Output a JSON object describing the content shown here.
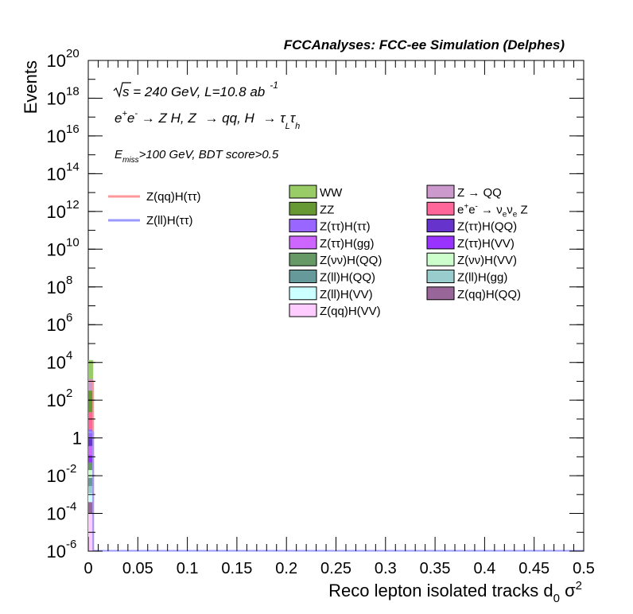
{
  "header": {
    "title": "FCCAnalyses: FCC-ee Simulation (Delphes)"
  },
  "annotations": {
    "energy_sqrt": "s",
    "energy_rest": " = 240 GeV, L=10.8 ab",
    "lumi_exp": "-1",
    "process": {
      "p1": "e",
      "p1_sup": "+",
      "p2": "e",
      "p2_sup": "-",
      "arrow1": " → Z H, Z ",
      "arrow2": "→ qq, H ",
      "arrow3": "→ τ",
      "tau1_sub": "L",
      "tau2": "τ",
      "tau2_sub": "h"
    },
    "selection": {
      "e": "E",
      "e_sub": "miss",
      "rest": ">100 GeV, BDT score>0.5"
    }
  },
  "legend_signal": [
    {
      "label": "Z(qq)H(ττ)",
      "color": "#ff9999"
    },
    {
      "label": "Z(ll)H(ττ)",
      "color": "#9999ff"
    }
  ],
  "legend_bkg": [
    {
      "label": "WW",
      "color": "#99cc66"
    },
    {
      "label": "Z → QQ",
      "color": "#cc99cc"
    },
    {
      "label": "ZZ",
      "color": "#669933"
    },
    {
      "label": "e+e- → νeνe Z",
      "color": "#ff6699",
      "rich": true
    },
    {
      "label": "Z(ττ)H(ττ)",
      "color": "#9966ff"
    },
    {
      "label": "Z(ττ)H(QQ)",
      "color": "#6633cc"
    },
    {
      "label": "Z(ττ)H(gg)",
      "color": "#cc66ff"
    },
    {
      "label": "Z(ττ)H(VV)",
      "color": "#9933ff"
    },
    {
      "label": "Z(νν)H(QQ)",
      "color": "#669966"
    },
    {
      "label": "Z(νν)H(VV)",
      "color": "#ccffcc"
    },
    {
      "label": "Z(ll)H(QQ)",
      "color": "#669999"
    },
    {
      "label": "Z(ll)H(gg)",
      "color": "#99cccc"
    },
    {
      "label": "Z(ll)H(VV)",
      "color": "#ccffff"
    },
    {
      "label": "Z(qq)H(QQ)",
      "color": "#996699"
    },
    {
      "label": "Z(qq)H(VV)",
      "color": "#ffccff"
    }
  ],
  "chart_data": {
    "type": "bar",
    "xlabel": "Reco lepton isolated tracks d",
    "xlabel_sub": "0",
    "xlabel_tail": " σ",
    "xlabel_sup": "2",
    "ylabel": "Events",
    "xlim": [
      0,
      0.5
    ],
    "ylim": [
      1e-06,
      1e+20
    ],
    "log_y": true,
    "x_ticks": [
      "0",
      "0.05",
      "0.1",
      "0.15",
      "0.2",
      "0.25",
      "0.3",
      "0.35",
      "0.4",
      "0.45",
      "0.5"
    ],
    "y_ticks": [
      {
        "base": "10",
        "exp": "-6",
        "value": 1e-06
      },
      {
        "base": "10",
        "exp": "-4",
        "value": 0.0001
      },
      {
        "base": "10",
        "exp": "-2",
        "value": 0.01
      },
      {
        "base": "1",
        "exp": "",
        "value": 1
      },
      {
        "base": "10",
        "exp": "2",
        "value": 100.0
      },
      {
        "base": "10",
        "exp": "4",
        "value": 10000.0
      },
      {
        "base": "10",
        "exp": "6",
        "value": 1000000.0
      },
      {
        "base": "10",
        "exp": "8",
        "value": 100000000.0
      },
      {
        "base": "10",
        "exp": "10",
        "value": 10000000000.0
      },
      {
        "base": "10",
        "exp": "12",
        "value": 1000000000000.0
      },
      {
        "base": "10",
        "exp": "14",
        "value": 100000000000000.0
      },
      {
        "base": "10",
        "exp": "16",
        "value": 1e+16
      },
      {
        "base": "10",
        "exp": "18",
        "value": 1e+18
      },
      {
        "base": "10",
        "exp": "20",
        "value": 1e+20
      }
    ],
    "bin_width": 0.005,
    "stack_first_bin": [
      {
        "name": "Z(qq)H(VV)",
        "color": "#ffccff",
        "value": 0.0001
      },
      {
        "name": "Z(qq)H(QQ)",
        "color": "#996699",
        "value": 0.0003
      },
      {
        "name": "Z(ll)H(VV)",
        "color": "#ccffff",
        "value": 0.0008
      },
      {
        "name": "Z(ll)H(gg)",
        "color": "#99cccc",
        "value": 0.0016
      },
      {
        "name": "Z(ll)H(QQ)",
        "color": "#669999",
        "value": 0.005
      },
      {
        "name": "Z(νν)H(VV)",
        "color": "#ccffcc",
        "value": 0.012
      },
      {
        "name": "Z(νν)H(QQ)",
        "color": "#669966",
        "value": 0.03
      },
      {
        "name": "Z(ττ)H(VV)",
        "color": "#9933ff",
        "value": 0.07
      },
      {
        "name": "Z(ττ)H(gg)",
        "color": "#cc66ff",
        "value": 0.25
      },
      {
        "name": "Z(ττ)H(QQ)",
        "color": "#6633cc",
        "value": 0.5
      },
      {
        "name": "Z(ττ)H(ττ)",
        "color": "#9966ff",
        "value": 2
      },
      {
        "name": "e+e- → νeνe Z",
        "color": "#ff6699",
        "value": 20
      },
      {
        "name": "ZZ",
        "color": "#669933",
        "value": 300
      },
      {
        "name": "Z → QQ",
        "color": "#cc99cc",
        "value": 1000
      },
      {
        "name": "WW",
        "color": "#99cc66",
        "value": 12000
      }
    ],
    "signal_lines": [
      {
        "name": "Z(qq)H(ττ)",
        "color": "#ff9999",
        "first_bin_value": 1000
      },
      {
        "name": "Z(ll)H(ττ)",
        "color": "#9999ff",
        "first_bin_value": 2
      }
    ]
  }
}
